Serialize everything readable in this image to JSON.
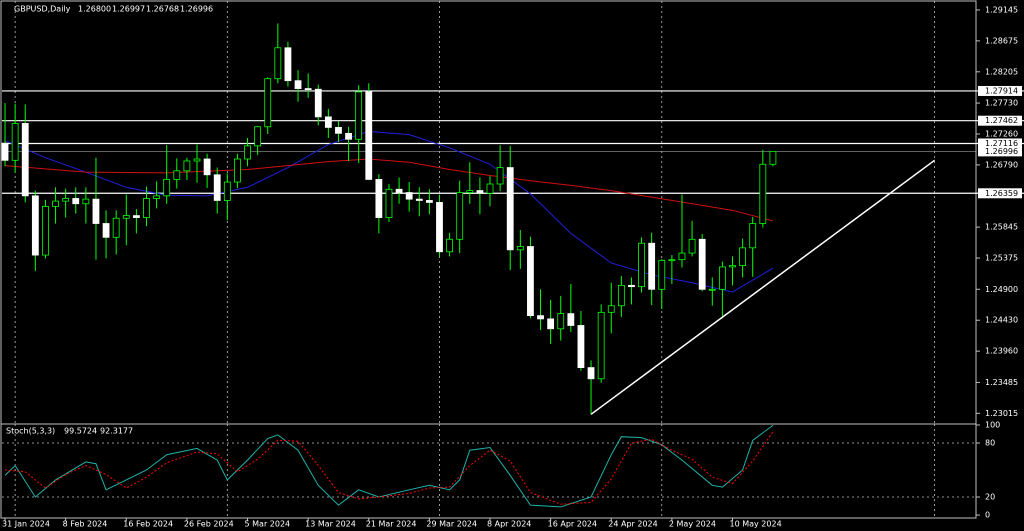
{
  "chart_data": [
    {
      "type": "candlestick",
      "title": "GBPUSD,Daily",
      "header_values": [
        {
          "value": 1.268,
          "label": "1.26800"
        },
        1.26997,
        1.26768,
        1.26996
      ],
      "categories": [
        "31 Jan 2024",
        null,
        null,
        null,
        null,
        null,
        "8 Feb 2024",
        null,
        null,
        null,
        null,
        null,
        "16 Feb 2024",
        null,
        null,
        null,
        null,
        null,
        "26 Feb 2024",
        null,
        null,
        null,
        null,
        null,
        "5 Mar 2024",
        null,
        null,
        null,
        null,
        null,
        "13 Mar 2024",
        null,
        null,
        null,
        null,
        null,
        "21 Mar 2024",
        null,
        null,
        null,
        null,
        null,
        "29 Mar 2024",
        null,
        null,
        null,
        null,
        null,
        "8 Apr 2024",
        null,
        null,
        null,
        null,
        null,
        "16 Apr 2024",
        null,
        null,
        null,
        null,
        null,
        "24 Apr 2024",
        null,
        null,
        null,
        null,
        null,
        "2 May 2024",
        null,
        null,
        null,
        null,
        null,
        "10 May 2024",
        null,
        null,
        null,
        null
      ],
      "open": [
        1.2712,
        1.2686,
        1.2742,
        1.2632,
        1.2542,
        1.2616,
        1.2624,
        1.2628,
        1.262,
        1.2627,
        1.259,
        1.2569,
        1.2598,
        1.2602,
        1.2599,
        1.2628,
        1.2632,
        1.2657,
        1.267,
        1.2685,
        1.2688,
        1.2664,
        1.2625,
        1.2653,
        1.2688,
        1.2708,
        1.2737,
        1.281,
        1.2857,
        1.2807,
        1.2795,
        1.2794,
        1.2752,
        1.2736,
        1.2727,
        1.2718,
        1.279,
        1.2657,
        1.2599,
        1.2642,
        1.2637,
        1.2627,
        1.2625,
        1.2622,
        1.2547,
        1.2566,
        1.2637,
        1.264,
        1.2636,
        1.265,
        1.2675,
        1.255,
        1.2555,
        1.245,
        1.2445,
        1.243,
        1.2453,
        1.2435,
        1.2371,
        1.2354,
        1.2455,
        1.2465,
        1.2496,
        1.2494,
        1.256,
        1.249,
        1.2534,
        1.2535,
        1.2545,
        1.2566,
        1.249,
        1.249,
        1.2524,
        1.2526,
        1.2553,
        1.259,
        1.268
      ],
      "high": [
        1.2773,
        1.2772,
        1.2771,
        1.264,
        1.2626,
        1.2645,
        1.2643,
        1.2645,
        1.2645,
        1.269,
        1.261,
        1.261,
        1.2634,
        1.2612,
        1.2646,
        1.2654,
        1.2709,
        1.2689,
        1.269,
        1.271,
        1.2696,
        1.2675,
        1.2666,
        1.2696,
        1.272,
        1.2738,
        1.2812,
        1.2894,
        1.2866,
        1.2823,
        1.2818,
        1.2801,
        1.2764,
        1.2745,
        1.2737,
        1.28,
        1.2803,
        1.2665,
        1.265,
        1.266,
        1.2653,
        1.2645,
        1.2642,
        1.2634,
        1.2576,
        1.2655,
        1.2683,
        1.266,
        1.2662,
        1.2709,
        1.2708,
        1.258,
        1.257,
        1.249,
        1.2474,
        1.248,
        1.2498,
        1.2457,
        1.2382,
        1.2467,
        1.25,
        1.251,
        1.2508,
        1.2569,
        1.2576,
        1.2536,
        1.2542,
        1.2634,
        1.2594,
        1.2574,
        1.2508,
        1.2532,
        1.254,
        1.2567,
        1.26,
        1.2702,
        1.26997
      ],
      "low": [
        1.2677,
        1.2667,
        1.2622,
        1.2518,
        1.2537,
        1.259,
        1.2599,
        1.2605,
        1.259,
        1.2535,
        1.2537,
        1.2543,
        1.2557,
        1.2575,
        1.2586,
        1.2613,
        1.262,
        1.2643,
        1.2656,
        1.2652,
        1.2644,
        1.2605,
        1.2595,
        1.2644,
        1.2677,
        1.2694,
        1.2726,
        1.2803,
        1.2798,
        1.2775,
        1.2781,
        1.2739,
        1.272,
        1.2714,
        1.2685,
        1.2682,
        1.2656,
        1.2575,
        1.2592,
        1.262,
        1.2608,
        1.2601,
        1.2604,
        1.2539,
        1.254,
        1.2545,
        1.262,
        1.2604,
        1.2616,
        1.2639,
        1.2519,
        1.2521,
        1.2446,
        1.2428,
        1.2407,
        1.2412,
        1.2425,
        1.2366,
        1.23,
        1.2348,
        1.2423,
        1.2448,
        1.2467,
        1.2485,
        1.2466,
        1.246,
        1.2498,
        1.2523,
        1.254,
        1.2487,
        1.2465,
        1.2446,
        1.2496,
        1.2508,
        1.2509,
        1.2584,
        1.26768
      ],
      "close": [
        1.2686,
        1.2742,
        1.2632,
        1.2542,
        1.2616,
        1.2624,
        1.2628,
        1.262,
        1.2627,
        1.259,
        1.2569,
        1.2598,
        1.2602,
        1.2599,
        1.2628,
        1.2632,
        1.2657,
        1.267,
        1.2685,
        1.2688,
        1.2664,
        1.2625,
        1.2653,
        1.2688,
        1.2708,
        1.2737,
        1.281,
        1.2857,
        1.2807,
        1.2795,
        1.2794,
        1.2752,
        1.2736,
        1.2727,
        1.2718,
        1.279,
        1.2657,
        1.2599,
        1.2642,
        1.2637,
        1.2627,
        1.2625,
        1.2622,
        1.2547,
        1.2566,
        1.2637,
        1.264,
        1.2636,
        1.265,
        1.2675,
        1.255,
        1.2555,
        1.245,
        1.2445,
        1.243,
        1.2453,
        1.2435,
        1.2371,
        1.2354,
        1.2455,
        1.2465,
        1.2496,
        1.2494,
        1.256,
        1.249,
        1.2534,
        1.2535,
        1.2545,
        1.2566,
        1.249,
        1.249,
        1.2524,
        1.2526,
        1.2553,
        1.259,
        1.268,
        1.26996
      ],
      "wick_color": "#00ff00",
      "up_color": "#000000",
      "down_color": "#ffffff",
      "overlays": [
        {
          "color": "#2020e0",
          "x": [
            0,
            4,
            8,
            12,
            16,
            20,
            24,
            28,
            32,
            36,
            40,
            44,
            48,
            52,
            56,
            60,
            64,
            68,
            72,
            76
          ],
          "values": [
            1.2716,
            1.269,
            1.2668,
            1.2645,
            1.2633,
            1.2632,
            1.2645,
            1.2675,
            1.271,
            1.273,
            1.2725,
            1.2705,
            1.268,
            1.2635,
            1.2575,
            1.253,
            1.2512,
            1.25,
            1.2486,
            1.2522
          ]
        },
        {
          "color": "#d01010",
          "x": [
            0,
            8,
            16,
            24,
            32,
            36,
            40,
            44,
            48,
            52,
            56,
            60,
            64,
            68,
            72,
            76
          ],
          "values": [
            1.2678,
            1.2668,
            1.2667,
            1.2672,
            1.2684,
            1.2688,
            1.2683,
            1.2672,
            1.2663,
            1.2655,
            1.2648,
            1.264,
            1.263,
            1.262,
            1.261,
            1.2594
          ]
        }
      ],
      "levels": [
        1.27914,
        1.27462,
        1.27116,
        1.26359
      ],
      "last_price": 1.26996,
      "trendline": {
        "x": [
          58,
          92
        ],
        "values": [
          1.23,
          1.2686
        ]
      },
      "xlim": [
        -0.3,
        96.1
      ],
      "xgrid": [
        1,
        22,
        43,
        65,
        92
      ],
      "ylim": [
        1.22853,
        1.29281
      ],
      "yticks": [
        1.29145,
        1.28675,
        1.28205,
        {
          "value": 1.2773,
          "label": "1.27730"
        },
        {
          "value": 1.2726,
          "label": "1.27260"
        },
        {
          "value": 1.2679,
          "label": "1.26790"
        },
        1.25845,
        1.25375,
        {
          "value": 1.249,
          "label": "1.24900"
        },
        {
          "value": 1.2443,
          "label": "1.24430"
        },
        {
          "value": 1.2396,
          "label": "1.23960"
        },
        1.23485,
        1.23015
      ]
    },
    {
      "type": "line",
      "title": "Stoch(5,3,3)",
      "title_values": [
        99.5724,
        92.3177
      ],
      "series": [
        {
          "color": "#20b2aa",
          "x": [
            0,
            1,
            3,
            5,
            8,
            9,
            10,
            12,
            14,
            16,
            19,
            21,
            22,
            24,
            26,
            27,
            29,
            31,
            33,
            35,
            37,
            40,
            42,
            44,
            45,
            46,
            48,
            50,
            52,
            55,
            58,
            60,
            61,
            63,
            65,
            67,
            70,
            71,
            73,
            74,
            76
          ],
          "values": [
            44,
            55,
            20,
            39,
            59,
            57,
            28,
            39,
            50,
            67,
            74,
            61,
            39,
            61,
            85,
            89,
            72,
            33,
            11,
            28,
            20,
            28,
            33,
            28,
            39,
            72,
            75,
            44,
            11,
            9,
            20,
            67,
            87,
            86,
            78,
            61,
            33,
            31,
            50,
            83,
            99.5724
          ]
        },
        {
          "color": "#ff0000",
          "dash": true,
          "x": [
            0,
            2,
            4,
            6,
            8,
            10,
            12,
            14,
            16,
            19,
            21,
            23,
            25,
            27,
            29,
            31,
            33,
            35,
            37,
            40,
            42,
            44,
            46,
            48,
            50,
            52,
            55,
            58,
            60,
            62,
            64,
            66,
            68,
            70,
            72,
            74,
            76
          ],
          "values": [
            50,
            48,
            30,
            45,
            55,
            45,
            30,
            42,
            58,
            70,
            68,
            48,
            62,
            83,
            82,
            55,
            25,
            18,
            20,
            24,
            30,
            31,
            55,
            72,
            60,
            25,
            12,
            14,
            40,
            80,
            84,
            72,
            62,
            42,
            35,
            60,
            92.3177
          ]
        }
      ],
      "levels": [
        20,
        80
      ],
      "xlim": [
        -0.3,
        96.1
      ],
      "xgrid": [
        1,
        22,
        43,
        65,
        92
      ],
      "ylim": [
        -3.3,
        101.1
      ],
      "yticks": [
        0,
        20,
        80,
        100
      ]
    }
  ]
}
